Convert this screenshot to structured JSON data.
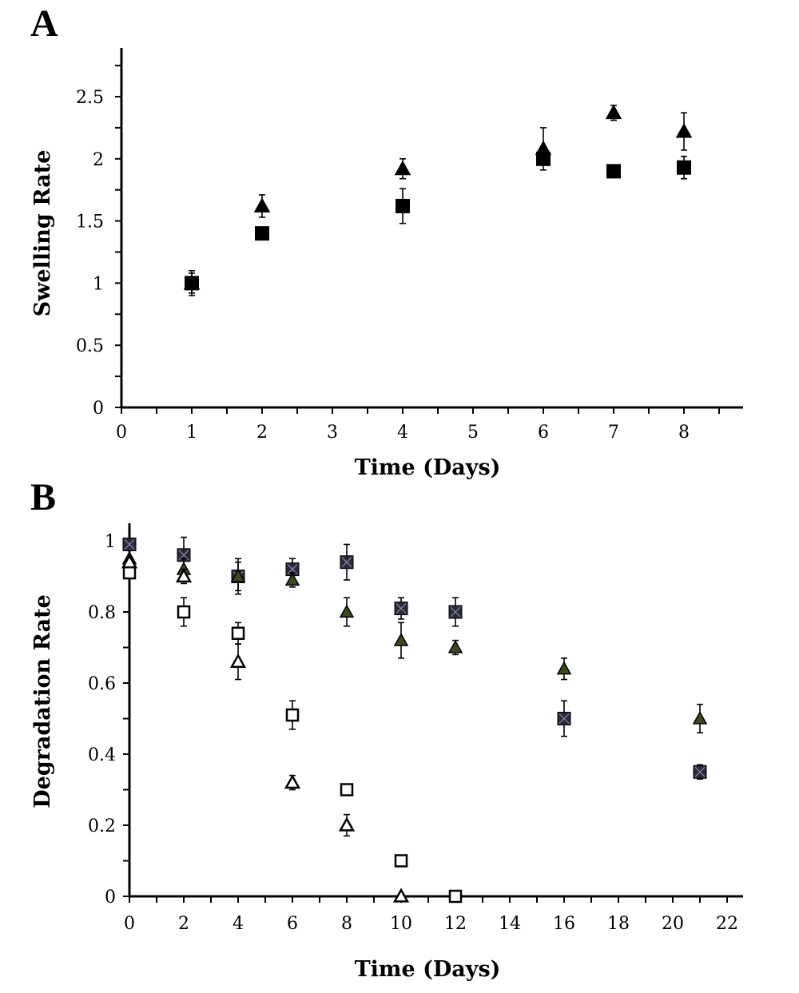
{
  "chart_data": [
    {
      "type": "scatter",
      "panel": "A",
      "title": "",
      "xlabel": "Time (Days)",
      "ylabel": "Swelling Rate",
      "xlim": [
        0,
        8.8
      ],
      "ylim": [
        0,
        2.8
      ],
      "x_ticks": [
        "0",
        "1",
        "2",
        "3",
        "4",
        "5",
        "6",
        "7",
        "8"
      ],
      "y_ticks": [
        "0",
        "0.5",
        "1",
        "1.5",
        "2",
        "2.5"
      ],
      "grid": false,
      "series": [
        {
          "marker": "filled-triangle",
          "points": [
            {
              "x": 1,
              "y": 1.0,
              "err": 0.08
            },
            {
              "x": 2,
              "y": 1.62,
              "err": 0.09
            },
            {
              "x": 4,
              "y": 1.92,
              "err": 0.08
            },
            {
              "x": 6,
              "y": 2.08,
              "err": 0.17
            },
            {
              "x": 7,
              "y": 2.37,
              "err": 0.06
            },
            {
              "x": 8,
              "y": 2.22,
              "err": 0.15
            }
          ]
        },
        {
          "marker": "filled-square",
          "points": [
            {
              "x": 1,
              "y": 1.0,
              "err": 0.1
            },
            {
              "x": 2,
              "y": 1.4,
              "err": 0
            },
            {
              "x": 4,
              "y": 1.62,
              "err": 0.14
            },
            {
              "x": 6,
              "y": 2.0,
              "err": 0
            },
            {
              "x": 7,
              "y": 1.9,
              "err": 0.05
            },
            {
              "x": 8,
              "y": 1.93,
              "err": 0.09
            }
          ]
        }
      ]
    },
    {
      "type": "scatter",
      "panel": "B",
      "title": "",
      "xlabel": "Time (Days)",
      "ylabel": "Degradation Rate",
      "xlim": [
        0,
        22.5
      ],
      "ylim": [
        0,
        1.05
      ],
      "x_ticks": [
        "0",
        "2",
        "4",
        "6",
        "8",
        "10",
        "12",
        "14",
        "16",
        "18",
        "20",
        "22"
      ],
      "y_ticks": [
        "0",
        "0.2",
        "0.4",
        "0.6",
        "0.8",
        "1"
      ],
      "grid": false,
      "series": [
        {
          "marker": "crossed-square",
          "color": "#2a2a3c",
          "points": [
            {
              "x": 0,
              "y": 0.99,
              "err": 0
            },
            {
              "x": 2,
              "y": 0.96,
              "err": 0.05
            },
            {
              "x": 4,
              "y": 0.9,
              "err": 0.05
            },
            {
              "x": 6,
              "y": 0.92,
              "err": 0.03
            },
            {
              "x": 8,
              "y": 0.94,
              "err": 0.05
            },
            {
              "x": 10,
              "y": 0.81,
              "err": 0.03
            },
            {
              "x": 12,
              "y": 0.8,
              "err": 0.04
            },
            {
              "x": 16,
              "y": 0.5,
              "err": 0.05
            },
            {
              "x": 21,
              "y": 0.35,
              "err": 0.02
            }
          ]
        },
        {
          "marker": "filled-triangle",
          "color": "#1a1a1a",
          "fill": "#3b4a1e",
          "points": [
            {
              "x": 0,
              "y": 0.95,
              "err": 0
            },
            {
              "x": 2,
              "y": 0.92,
              "err": 0.03
            },
            {
              "x": 4,
              "y": 0.9,
              "err": 0.04
            },
            {
              "x": 6,
              "y": 0.89,
              "err": 0.02
            },
            {
              "x": 8,
              "y": 0.8,
              "err": 0.04
            },
            {
              "x": 10,
              "y": 0.72,
              "err": 0.05
            },
            {
              "x": 12,
              "y": 0.7,
              "err": 0.02
            },
            {
              "x": 16,
              "y": 0.64,
              "err": 0.03
            },
            {
              "x": 21,
              "y": 0.5,
              "err": 0.04
            }
          ]
        },
        {
          "marker": "open-square",
          "color": "#000000",
          "points": [
            {
              "x": 0,
              "y": 0.91,
              "err": 0
            },
            {
              "x": 2,
              "y": 0.8,
              "err": 0.04
            },
            {
              "x": 4,
              "y": 0.74,
              "err": 0.03
            },
            {
              "x": 6,
              "y": 0.51,
              "err": 0.04
            },
            {
              "x": 8,
              "y": 0.3,
              "err": 0.01
            },
            {
              "x": 10,
              "y": 0.1,
              "err": 0
            },
            {
              "x": 12,
              "y": 0.0,
              "err": 0
            }
          ]
        },
        {
          "marker": "open-triangle",
          "color": "#000000",
          "points": [
            {
              "x": 0,
              "y": 0.94,
              "err": 0
            },
            {
              "x": 2,
              "y": 0.9,
              "err": 0.02
            },
            {
              "x": 4,
              "y": 0.66,
              "err": 0.05
            },
            {
              "x": 6,
              "y": 0.32,
              "err": 0.02
            },
            {
              "x": 8,
              "y": 0.2,
              "err": 0.03
            },
            {
              "x": 10,
              "y": 0.0,
              "err": 0
            }
          ]
        }
      ]
    }
  ]
}
